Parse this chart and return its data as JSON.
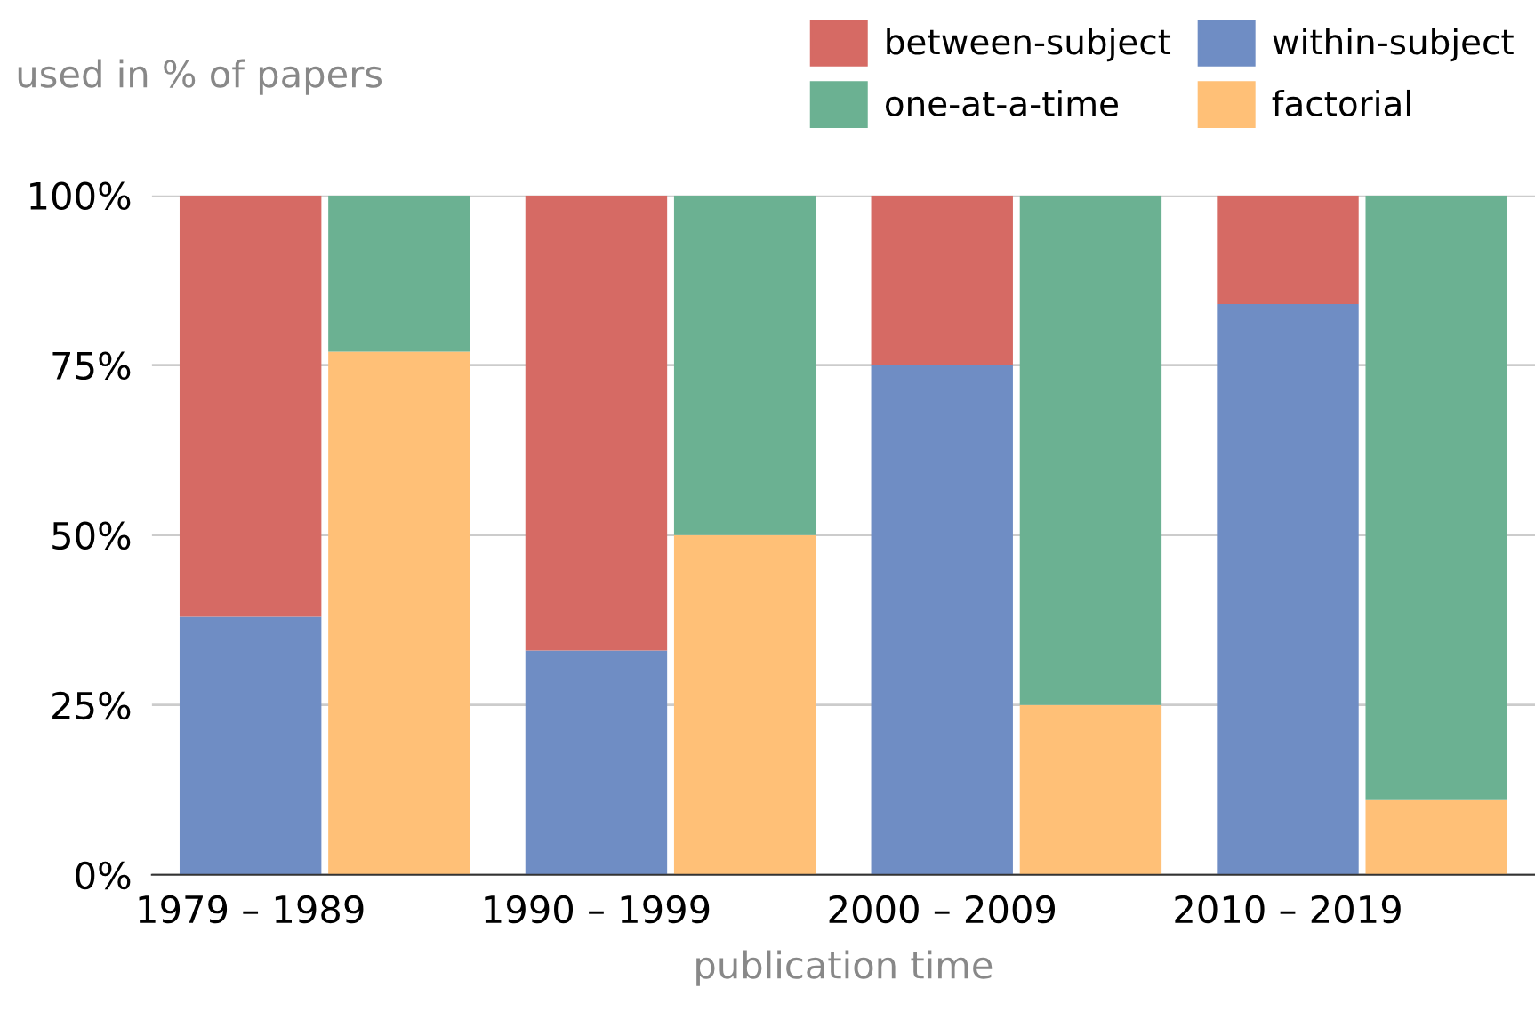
{
  "chart_data": {
    "type": "bar",
    "stacked": true,
    "xlabel": "publication time",
    "ylabel": "used in % of papers",
    "categories": [
      "1979 – 1989",
      null,
      "1990 – 1999",
      null,
      "2000 – 2009",
      null,
      "2010 – 2019",
      null
    ],
    "series": [
      {
        "name": "within-subject",
        "color": "#6f8dc4",
        "values": [
          38,
          null,
          33,
          null,
          75,
          null,
          84,
          null
        ]
      },
      {
        "name": "between-subject",
        "color": "#d66a64",
        "values": [
          62,
          null,
          67,
          null,
          25,
          null,
          16,
          null
        ]
      },
      {
        "name": "factorial",
        "color": "#ffc077",
        "values": [
          null,
          77,
          null,
          50,
          null,
          25,
          null,
          11
        ]
      },
      {
        "name": "one-at-a-time",
        "color": "#6bb192",
        "values": [
          null,
          23,
          null,
          50,
          null,
          75,
          null,
          89
        ]
      }
    ],
    "ylim": [
      0,
      100
    ],
    "yticks": [
      {
        "value": 0,
        "label": "0%"
      },
      {
        "value": 25,
        "label": "25%"
      },
      {
        "value": 50,
        "label": "50%"
      },
      {
        "value": 75,
        "label": "75%"
      },
      {
        "value": 100,
        "label": "100%"
      }
    ],
    "grid": "y",
    "legend": "top right"
  }
}
